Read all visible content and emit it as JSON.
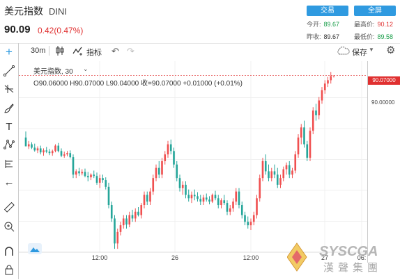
{
  "header": {
    "title": "美元指数",
    "code": "DINI",
    "price": "90.09",
    "change": "0.42(0.47%)"
  },
  "buttons": {
    "trade": "交易",
    "fullscreen": "全屏"
  },
  "stats": [
    {
      "label": "今开:",
      "value": "89.67",
      "tone": "green"
    },
    {
      "label": "最高价:",
      "value": "90.12",
      "tone": "red"
    },
    {
      "label": "昨收:",
      "value": "89.67",
      "tone": "normal"
    },
    {
      "label": "最低价:",
      "value": "89.58",
      "tone": "green"
    }
  ],
  "toolbar": {
    "interval": "30m",
    "indicator_label": "指标",
    "save_label": "保存"
  },
  "chart_legend": {
    "symbol_interval": "美元指数, 30",
    "ohlc": "O90.06000 H90.07000 L90.04000 收=90.07000 +0.01000 (+0.01%)"
  },
  "chart_data": {
    "type": "candlestick",
    "y_axis": {
      "tick_labels": [
        "90.00000"
      ],
      "last_price_label": "90.07000",
      "ylim": [
        87.45,
        90.2
      ]
    },
    "x_axis": {
      "tick_labels": [
        "12:00",
        "26",
        "12:00",
        "27",
        "06:"
      ]
    },
    "last_price": 90.07,
    "colors": {
      "up": "#f05050",
      "down": "#26a69a",
      "last_price_line": "#e03030"
    },
    "candles": [
      [
        89.15,
        89.24,
        89.02,
        89.02
      ],
      [
        89.02,
        89.1,
        88.98,
        89.05
      ],
      [
        89.05,
        89.08,
        88.98,
        89.0
      ],
      [
        89.0,
        89.06,
        88.94,
        88.96
      ],
      [
        88.96,
        89.02,
        88.92,
        88.99
      ],
      [
        88.99,
        89.03,
        88.9,
        88.93
      ],
      [
        88.93,
        88.99,
        88.88,
        88.96
      ],
      [
        88.96,
        89.01,
        88.92,
        88.94
      ],
      [
        88.94,
        88.98,
        88.89,
        88.92
      ],
      [
        88.92,
        88.97,
        88.88,
        88.95
      ],
      [
        88.95,
        89.05,
        88.93,
        89.03
      ],
      [
        89.03,
        89.07,
        88.93,
        88.95
      ],
      [
        88.95,
        88.99,
        88.86,
        88.88
      ],
      [
        88.88,
        88.94,
        88.85,
        88.9
      ],
      [
        88.9,
        88.95,
        88.87,
        88.92
      ],
      [
        88.92,
        88.96,
        88.84,
        88.86
      ],
      [
        88.86,
        88.9,
        88.55,
        88.6
      ],
      [
        88.6,
        88.68,
        88.55,
        88.65
      ],
      [
        88.65,
        88.7,
        88.58,
        88.62
      ],
      [
        88.62,
        88.68,
        88.59,
        88.64
      ],
      [
        88.64,
        88.69,
        88.56,
        88.58
      ],
      [
        88.58,
        88.64,
        88.5,
        88.56
      ],
      [
        88.56,
        88.62,
        88.52,
        88.6
      ],
      [
        88.6,
        88.66,
        88.55,
        88.58
      ],
      [
        88.58,
        88.63,
        88.45,
        88.48
      ],
      [
        88.48,
        88.6,
        88.4,
        88.55
      ],
      [
        88.55,
        88.6,
        88.48,
        88.52
      ],
      [
        88.52,
        88.56,
        88.38,
        88.42
      ],
      [
        88.42,
        88.48,
        88.1,
        88.15
      ],
      [
        88.15,
        88.2,
        87.9,
        87.95
      ],
      [
        87.95,
        88.0,
        87.5,
        87.58
      ],
      [
        87.58,
        87.8,
        87.5,
        87.75
      ],
      [
        87.75,
        87.9,
        87.7,
        87.85
      ],
      [
        87.85,
        88.0,
        87.8,
        87.95
      ],
      [
        87.95,
        88.0,
        87.8,
        87.86
      ],
      [
        87.86,
        88.05,
        87.82,
        88.0
      ],
      [
        88.0,
        88.08,
        87.9,
        87.95
      ],
      [
        87.95,
        88.1,
        87.9,
        88.05
      ],
      [
        88.05,
        88.12,
        87.98,
        88.0
      ],
      [
        88.0,
        88.18,
        87.95,
        88.15
      ],
      [
        88.15,
        88.35,
        88.1,
        88.3
      ],
      [
        88.3,
        88.35,
        88.15,
        88.2
      ],
      [
        88.2,
        88.4,
        88.15,
        88.35
      ],
      [
        88.35,
        88.6,
        88.3,
        88.55
      ],
      [
        88.55,
        88.75,
        88.5,
        88.7
      ],
      [
        88.7,
        88.8,
        88.55,
        88.6
      ],
      [
        88.6,
        88.85,
        88.55,
        88.8
      ],
      [
        88.8,
        88.95,
        88.75,
        88.9
      ],
      [
        88.9,
        89.1,
        88.85,
        89.05
      ],
      [
        89.05,
        89.12,
        88.9,
        88.95
      ],
      [
        88.95,
        89.0,
        88.7,
        88.75
      ],
      [
        88.75,
        88.8,
        88.5,
        88.55
      ],
      [
        88.55,
        88.6,
        88.35,
        88.4
      ],
      [
        88.4,
        88.5,
        88.3,
        88.45
      ],
      [
        88.45,
        88.5,
        88.25,
        88.3
      ],
      [
        88.3,
        88.38,
        88.2,
        88.25
      ],
      [
        88.25,
        88.35,
        88.18,
        88.3
      ],
      [
        88.3,
        88.38,
        88.22,
        88.28
      ],
      [
        88.28,
        88.34,
        88.2,
        88.24
      ],
      [
        88.24,
        88.3,
        88.15,
        88.2
      ],
      [
        88.2,
        88.3,
        88.15,
        88.26
      ],
      [
        88.26,
        88.32,
        88.2,
        88.23
      ],
      [
        88.23,
        88.28,
        88.16,
        88.2
      ],
      [
        88.2,
        88.32,
        88.18,
        88.3
      ],
      [
        88.3,
        88.36,
        88.22,
        88.25
      ],
      [
        88.25,
        88.3,
        88.1,
        88.15
      ],
      [
        88.15,
        88.25,
        88.1,
        88.22
      ],
      [
        88.22,
        88.3,
        88.15,
        88.18
      ],
      [
        88.18,
        88.22,
        88.0,
        88.05
      ],
      [
        88.05,
        88.15,
        88.0,
        88.1
      ],
      [
        88.1,
        88.25,
        88.05,
        88.2
      ],
      [
        88.2,
        88.4,
        88.15,
        88.35
      ],
      [
        88.35,
        88.4,
        88.1,
        88.15
      ],
      [
        88.15,
        88.2,
        87.95,
        88.0
      ],
      [
        88.0,
        88.05,
        87.85,
        87.9
      ],
      [
        87.9,
        87.98,
        87.8,
        87.85
      ],
      [
        87.85,
        87.95,
        87.78,
        87.9
      ],
      [
        87.9,
        88.05,
        87.85,
        88.0
      ],
      [
        88.0,
        88.3,
        87.95,
        88.25
      ],
      [
        88.25,
        88.6,
        88.2,
        88.55
      ],
      [
        88.55,
        88.85,
        88.5,
        88.8
      ],
      [
        88.8,
        88.9,
        88.6,
        88.65
      ],
      [
        88.65,
        88.75,
        88.5,
        88.55
      ],
      [
        88.55,
        88.7,
        88.5,
        88.65
      ],
      [
        88.65,
        88.75,
        88.55,
        88.6
      ],
      [
        88.6,
        88.7,
        88.4,
        88.45
      ],
      [
        88.45,
        88.6,
        88.4,
        88.55
      ],
      [
        88.55,
        88.72,
        88.5,
        88.68
      ],
      [
        88.68,
        88.78,
        88.6,
        88.74
      ],
      [
        88.74,
        88.8,
        88.55,
        88.6
      ],
      [
        88.6,
        88.7,
        88.55,
        88.66
      ],
      [
        88.66,
        88.95,
        88.62,
        88.9
      ],
      [
        88.9,
        89.2,
        88.85,
        89.15
      ],
      [
        89.15,
        89.35,
        89.05,
        89.3
      ],
      [
        89.3,
        89.4,
        89.0,
        89.05
      ],
      [
        89.05,
        89.1,
        88.8,
        88.85
      ],
      [
        88.85,
        89.3,
        88.8,
        89.25
      ],
      [
        89.25,
        89.6,
        89.2,
        89.55
      ],
      [
        89.55,
        89.65,
        89.4,
        89.48
      ],
      [
        89.48,
        89.75,
        89.42,
        89.7
      ],
      [
        89.7,
        89.9,
        89.65,
        89.85
      ],
      [
        89.85,
        90.0,
        89.8,
        89.95
      ],
      [
        89.95,
        90.05,
        89.9,
        90.0
      ],
      [
        90.0,
        90.12,
        89.95,
        90.06
      ],
      [
        90.06,
        90.07,
        90.04,
        90.07
      ]
    ]
  }
}
